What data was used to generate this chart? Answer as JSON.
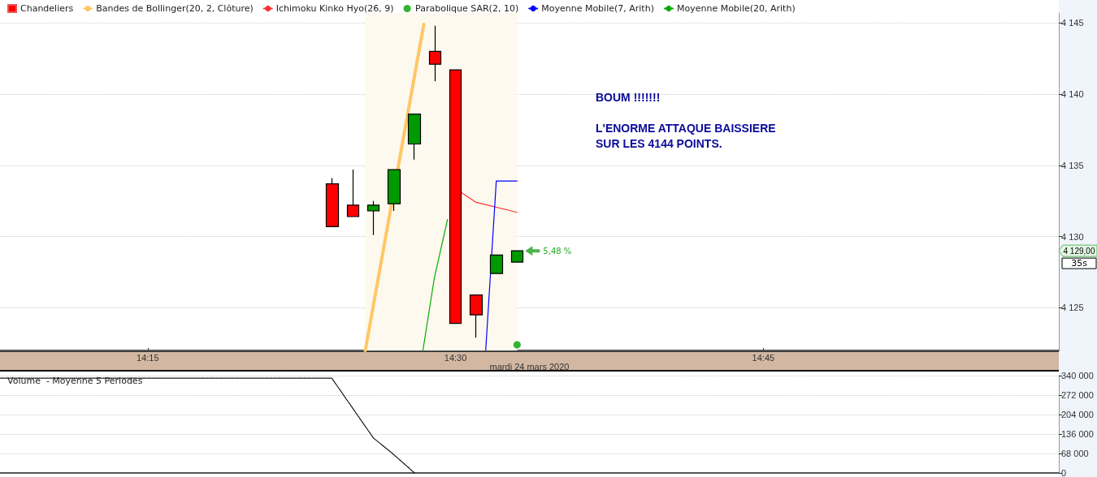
{
  "chart_data": [
    {
      "type": "candlestick",
      "xlabel": "mardi 24 mars 2020",
      "legend": "top left",
      "grid": "y",
      "marker": "none",
      "xlim": [
        14.13,
        14.99
      ],
      "xticks": [
        {
          "value": 14.25,
          "label": "14:15"
        },
        {
          "value": 14.5,
          "label": "14:30"
        },
        {
          "value": 14.75,
          "label": "14:45"
        }
      ],
      "ylim": [
        4122,
        4145.7
      ],
      "yticks": [
        {
          "value": 4125,
          "label": "4 125"
        },
        {
          "value": 4130,
          "label": "4 130"
        },
        {
          "value": 4135,
          "label": "4 135"
        },
        {
          "value": 4140,
          "label": "4 140"
        },
        {
          "value": 4145,
          "label": "4 145"
        }
      ],
      "bands": [
        {
          "axis": "x",
          "from": 14.4267,
          "to": 14.55,
          "color": "#fdf9ee"
        }
      ],
      "series": [
        {
          "type": "candlestick",
          "name": "Chandeliers",
          "x": [
            14.4,
            14.4167,
            14.4333,
            14.45,
            14.4667,
            14.4833,
            14.5,
            14.5167,
            14.5333,
            14.55
          ],
          "ohlc": [
            [
              4133.7,
              4134.1,
              4130.7,
              4130.7
            ],
            [
              4132.2,
              4134.7,
              4131.4,
              4131.4
            ],
            [
              4131.8,
              4132.5,
              4130.1,
              4132.2
            ],
            [
              4132.3,
              4134.7,
              4131.8,
              4134.7
            ],
            [
              4136.5,
              4138.6,
              4135.4,
              4138.6
            ],
            [
              4143.0,
              4144.8,
              4140.9,
              4142.1
            ],
            [
              4141.7,
              4141.7,
              4123.9,
              4123.9
            ],
            [
              4125.9,
              4125.9,
              4122.9,
              4124.5
            ],
            [
              4127.4,
              4128.7,
              4127.4,
              4128.7
            ],
            [
              4128.2,
              4129.0,
              4128.2,
              4129.0
            ]
          ],
          "colors": [
            "#ff0000",
            "#ff0000",
            "#009900",
            "#009900",
            "#009900",
            "#ff0000",
            "#ff0000",
            "#ff0000",
            "#009900",
            "#009900"
          ]
        },
        {
          "type": "line",
          "name": "Bandes de Bollinger(20, 2, Clôture)",
          "color": "#ffc766",
          "x": [
            14.4267,
            14.4742
          ],
          "values": [
            4122,
            4144.9
          ]
        },
        {
          "type": "line",
          "name": "Ichimoku Kinko Hyo(26, 9)",
          "color": "#ff3333",
          "x": [
            14.5046,
            14.5167,
            14.55
          ],
          "values": [
            4133.1,
            4132.4,
            4131.7
          ]
        },
        {
          "type": "scatter",
          "name": "Parabolique SAR(2, 10)",
          "color": "#00a000",
          "marker": "circle",
          "x": [
            14.55
          ],
          "values": [
            4122.4
          ]
        },
        {
          "type": "line",
          "name": "Moyenne Mobile(7, Arith)",
          "color": "#0000ff",
          "x": [
            14.5245,
            14.5331,
            14.55
          ],
          "values": [
            4122,
            4133.9,
            4133.9
          ]
        },
        {
          "type": "line",
          "name": "Moyenne Mobile(20, Arith)",
          "color": "#00aa00",
          "x": [
            14.4735,
            14.4828,
            14.4935
          ],
          "values": [
            4122,
            4127.1,
            4131.2
          ]
        }
      ],
      "annotations": [
        "BOUM !!!!!!!",
        "L'ENORME ATTAQUE BAISSIERE\nSUR LES 4144 POINTS.",
        "5,48 %",
        "4 129,00",
        "35s"
      ]
    },
    {
      "type": "line",
      "title": "Volume  - Moyenne 5 Periodes",
      "grid": "y",
      "tick_labels": "y",
      "line_style": "dotted",
      "marker": "none",
      "xlim": [
        14.13,
        14.99
      ],
      "ylim": [
        0,
        340000
      ],
      "yticks": [
        {
          "value": 0,
          "label": "0"
        },
        {
          "value": 68000,
          "label": "68 000"
        },
        {
          "value": 136000,
          "label": "136 000"
        },
        {
          "value": 204000,
          "label": "204 000"
        },
        {
          "value": 272000,
          "label": "272 000"
        },
        {
          "value": 340000,
          "label": "340 000"
        }
      ],
      "series": [
        {
          "color": "#000000",
          "x": [
            14.13,
            14.3995,
            14.4333,
            14.448,
            14.4667
          ],
          "values": [
            331000,
            331000,
            122000,
            71000,
            0
          ]
        }
      ]
    }
  ]
}
